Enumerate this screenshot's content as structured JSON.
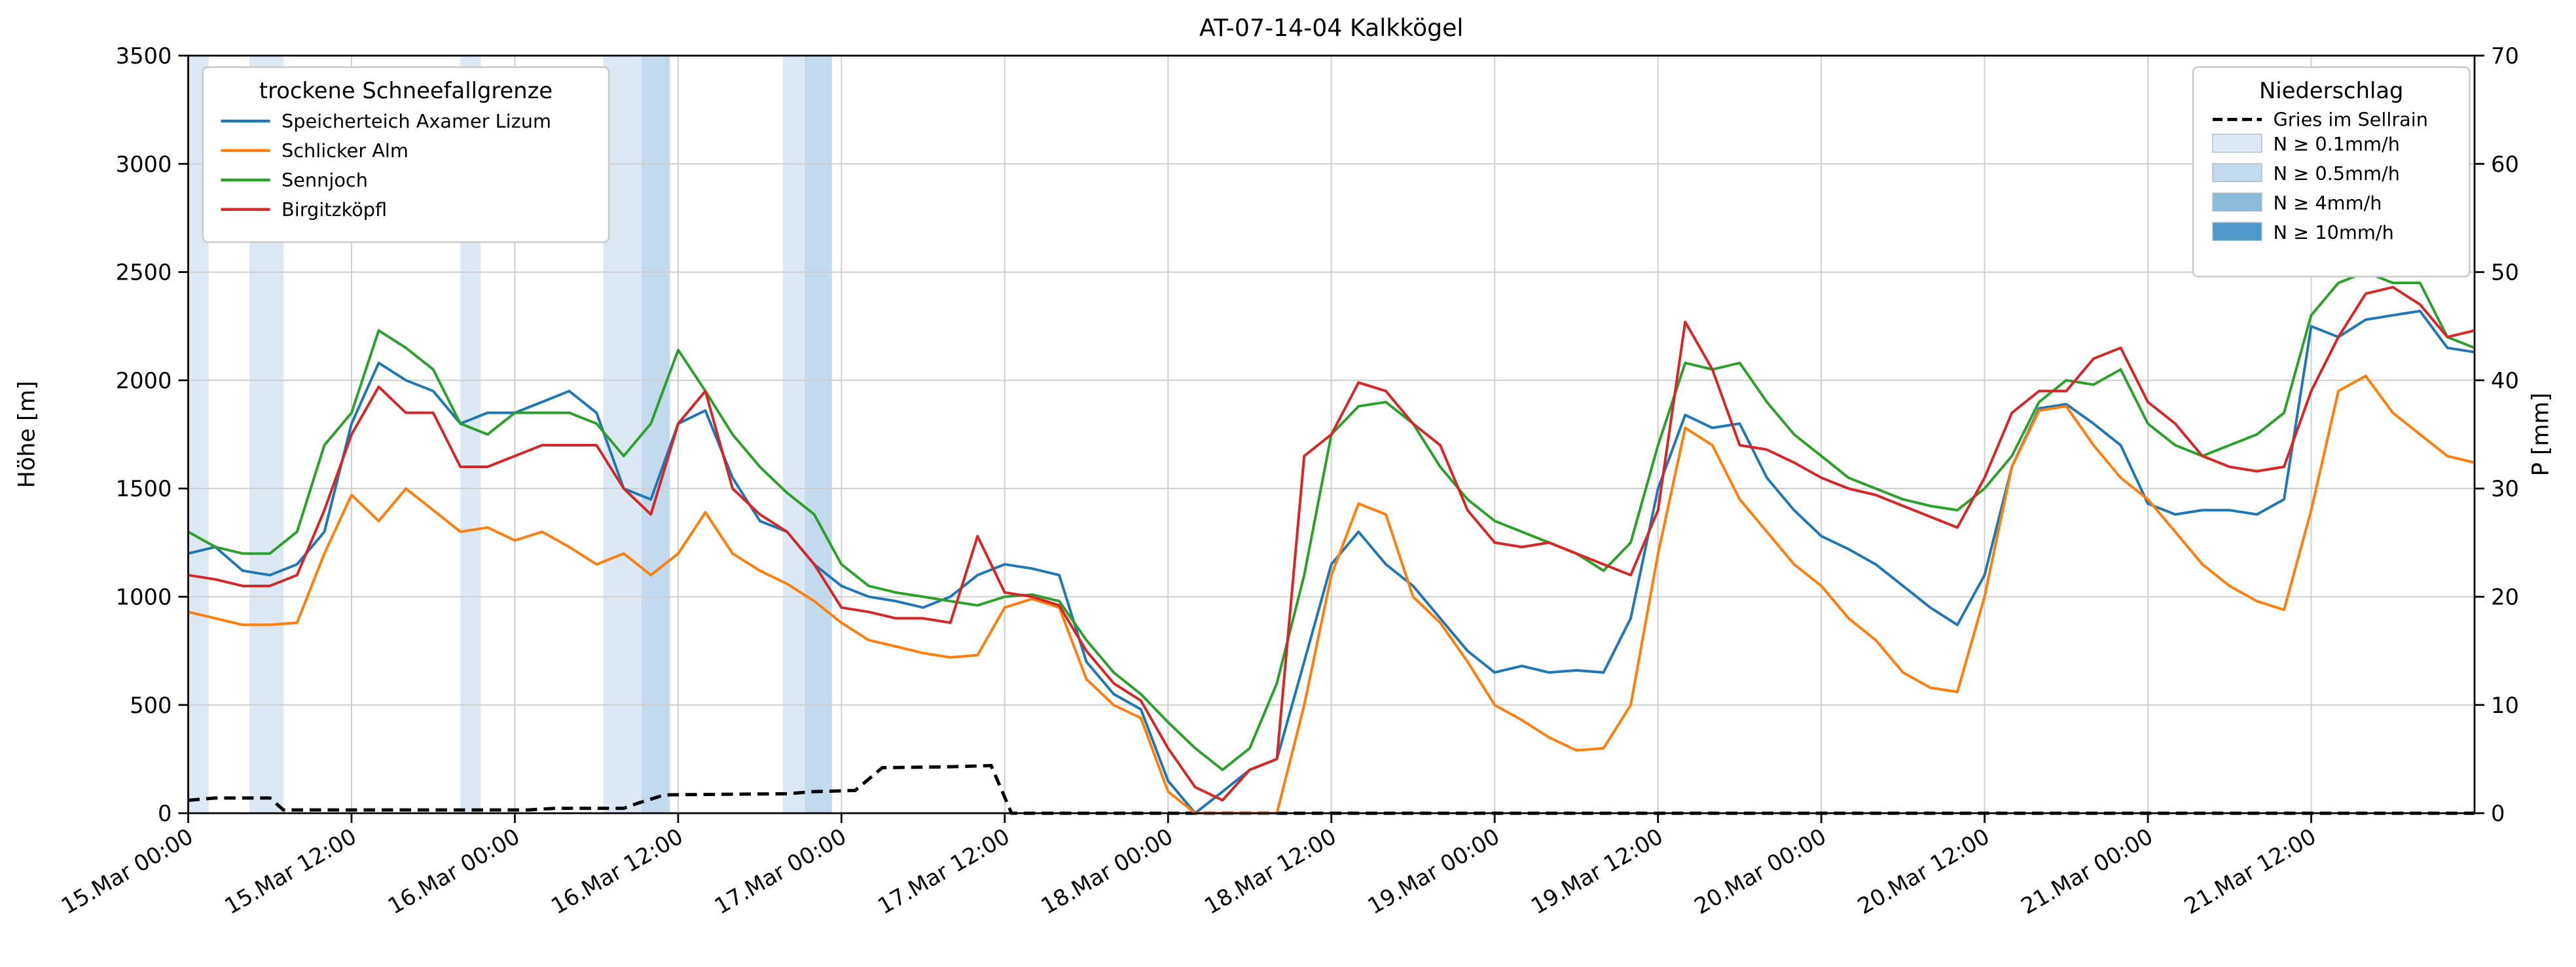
{
  "title": "AT-07-14-04 Kalkkögel",
  "y_left": {
    "label": "Höhe [m]",
    "min": 0,
    "max": 3500,
    "ticks": [
      0,
      500,
      1000,
      1500,
      2000,
      2500,
      3000,
      3500
    ]
  },
  "y_right": {
    "label": "P [mm]",
    "min": 0,
    "max": 70,
    "ticks": [
      0,
      10,
      20,
      30,
      40,
      50,
      60,
      70
    ]
  },
  "x_axis": {
    "total_hours": 168,
    "tick_hours": [
      0,
      12,
      24,
      36,
      48,
      60,
      72,
      84,
      96,
      108,
      120,
      132,
      144,
      156
    ],
    "labels": [
      "15.Mar 00:00",
      "15.Mar 12:00",
      "16.Mar 00:00",
      "16.Mar 12:00",
      "17.Mar 00:00",
      "17.Mar 12:00",
      "18.Mar 00:00",
      "18.Mar 12:00",
      "19.Mar 00:00",
      "19.Mar 12:00",
      "20.Mar 00:00",
      "20.Mar 12:00",
      "21.Mar 00:00",
      "21.Mar 12:00"
    ]
  },
  "legend_left_title": "trockene Schneefallgrenze",
  "legend_right_title": "Niederschlag",
  "chart_data": {
    "type": "line",
    "x_start": "15.Mar 00:00",
    "x_step_hours": 2,
    "x_unit": "hours since 15.Mar 00:00",
    "series": [
      {
        "name": "Speicherteich Axamer Lizum",
        "color": "#1f77b4",
        "values": [
          1200,
          1230,
          1120,
          1100,
          1150,
          1300,
          1800,
          2080,
          2000,
          1950,
          1800,
          1850,
          1850,
          1900,
          1950,
          1850,
          1500,
          1450,
          1800,
          1860,
          1550,
          1350,
          1300,
          1150,
          1050,
          1000,
          980,
          950,
          1000,
          1100,
          1150,
          1130,
          1100,
          700,
          550,
          480,
          150,
          0,
          100,
          200,
          250,
          700,
          1150,
          1300,
          1150,
          1050,
          900,
          750,
          650,
          680,
          650,
          660,
          650,
          900,
          1500,
          1840,
          1780,
          1800,
          1550,
          1400,
          1280,
          1220,
          1150,
          1050,
          950,
          870,
          1100,
          1600,
          1870,
          1890,
          1800,
          1700,
          1430,
          1380,
          1400,
          1400,
          1380,
          1450,
          2250,
          2200,
          2280,
          2300,
          2320,
          2150,
          2130
        ]
      },
      {
        "name": "Schlicker Alm",
        "color": "#ff7f0e",
        "values": [
          930,
          900,
          870,
          870,
          880,
          1200,
          1470,
          1350,
          1500,
          1400,
          1300,
          1320,
          1260,
          1300,
          1230,
          1150,
          1200,
          1100,
          1200,
          1390,
          1200,
          1120,
          1060,
          980,
          880,
          800,
          770,
          740,
          720,
          730,
          950,
          990,
          950,
          620,
          500,
          440,
          100,
          0,
          0,
          0,
          0,
          500,
          1100,
          1430,
          1380,
          1000,
          880,
          700,
          500,
          430,
          350,
          290,
          300,
          500,
          1200,
          1780,
          1700,
          1450,
          1300,
          1150,
          1050,
          900,
          800,
          650,
          580,
          560,
          1000,
          1600,
          1860,
          1880,
          1700,
          1550,
          1450,
          1300,
          1150,
          1050,
          980,
          940,
          1400,
          1950,
          2020,
          1850,
          1750,
          1650,
          1620
        ]
      },
      {
        "name": "Sennjoch",
        "color": "#2ca02c",
        "values": [
          1300,
          1230,
          1200,
          1200,
          1300,
          1700,
          1850,
          2230,
          2150,
          2050,
          1800,
          1750,
          1850,
          1850,
          1850,
          1800,
          1650,
          1800,
          2140,
          1950,
          1750,
          1600,
          1480,
          1380,
          1150,
          1050,
          1020,
          1000,
          980,
          960,
          1000,
          1010,
          980,
          800,
          650,
          550,
          420,
          300,
          200,
          300,
          600,
          1100,
          1750,
          1880,
          1900,
          1800,
          1600,
          1450,
          1350,
          1300,
          1250,
          1200,
          1120,
          1250,
          1700,
          2080,
          2050,
          2080,
          1900,
          1750,
          1650,
          1550,
          1500,
          1450,
          1420,
          1400,
          1500,
          1650,
          1900,
          2000,
          1980,
          2050,
          1800,
          1700,
          1650,
          1700,
          1750,
          1850,
          2300,
          2450,
          2500,
          2450,
          2450,
          2200,
          2150
        ]
      },
      {
        "name": "Birgitzköpfl",
        "color": "#d62728",
        "values": [
          1100,
          1080,
          1050,
          1050,
          1100,
          1400,
          1750,
          1970,
          1850,
          1850,
          1600,
          1600,
          1650,
          1700,
          1700,
          1700,
          1500,
          1380,
          1800,
          1950,
          1500,
          1380,
          1300,
          1150,
          950,
          930,
          900,
          900,
          880,
          1280,
          1020,
          1000,
          960,
          750,
          600,
          520,
          300,
          120,
          60,
          200,
          250,
          1650,
          1750,
          1990,
          1950,
          1800,
          1700,
          1400,
          1250,
          1230,
          1250,
          1200,
          1150,
          1100,
          1400,
          2270,
          2050,
          1700,
          1680,
          1620,
          1550,
          1500,
          1470,
          1420,
          1370,
          1320,
          1550,
          1850,
          1950,
          1950,
          2100,
          2150,
          1900,
          1800,
          1650,
          1600,
          1580,
          1600,
          1950,
          2200,
          2400,
          2430,
          2350,
          2200,
          2230
        ]
      }
    ],
    "precip_line": {
      "name": "Gries im Sellrain",
      "color": "#000000",
      "style": "dashed",
      "axis": "right",
      "points": [
        [
          0,
          1.2
        ],
        [
          2,
          1.4
        ],
        [
          6,
          1.4
        ],
        [
          7,
          0.3
        ],
        [
          25,
          0.3
        ],
        [
          27,
          0.45
        ],
        [
          32,
          0.45
        ],
        [
          33,
          0.9
        ],
        [
          35,
          1.7
        ],
        [
          44,
          1.8
        ],
        [
          46,
          2.0
        ],
        [
          49,
          2.1
        ],
        [
          51,
          4.2
        ],
        [
          56,
          4.3
        ],
        [
          59,
          4.4
        ],
        [
          60.5,
          0
        ],
        [
          168,
          0
        ]
      ]
    },
    "precip_levels": [
      {
        "key": "0.1",
        "label": "N ≥ 0.1mm/h",
        "color": "#dce9f5"
      },
      {
        "key": "0.5",
        "label": "N ≥ 0.5mm/h",
        "color": "#c2d9ee"
      },
      {
        "key": "4",
        "label": "N ≥ 4mm/h",
        "color": "#8bbcdc"
      },
      {
        "key": "10",
        "label": "N ≥ 10mm/h",
        "color": "#4f9aca"
      }
    ],
    "precip_bands": [
      {
        "start_h": 0,
        "end_h": 1.5,
        "level": "0.1"
      },
      {
        "start_h": 4.5,
        "end_h": 7,
        "level": "0.1"
      },
      {
        "start_h": 20,
        "end_h": 21.5,
        "level": "0.1"
      },
      {
        "start_h": 30.5,
        "end_h": 33.3,
        "level": "0.1"
      },
      {
        "start_h": 33.3,
        "end_h": 35.4,
        "level": "0.5"
      },
      {
        "start_h": 43.7,
        "end_h": 45.3,
        "level": "0.1"
      },
      {
        "start_h": 45.3,
        "end_h": 47.3,
        "level": "0.5"
      }
    ]
  }
}
